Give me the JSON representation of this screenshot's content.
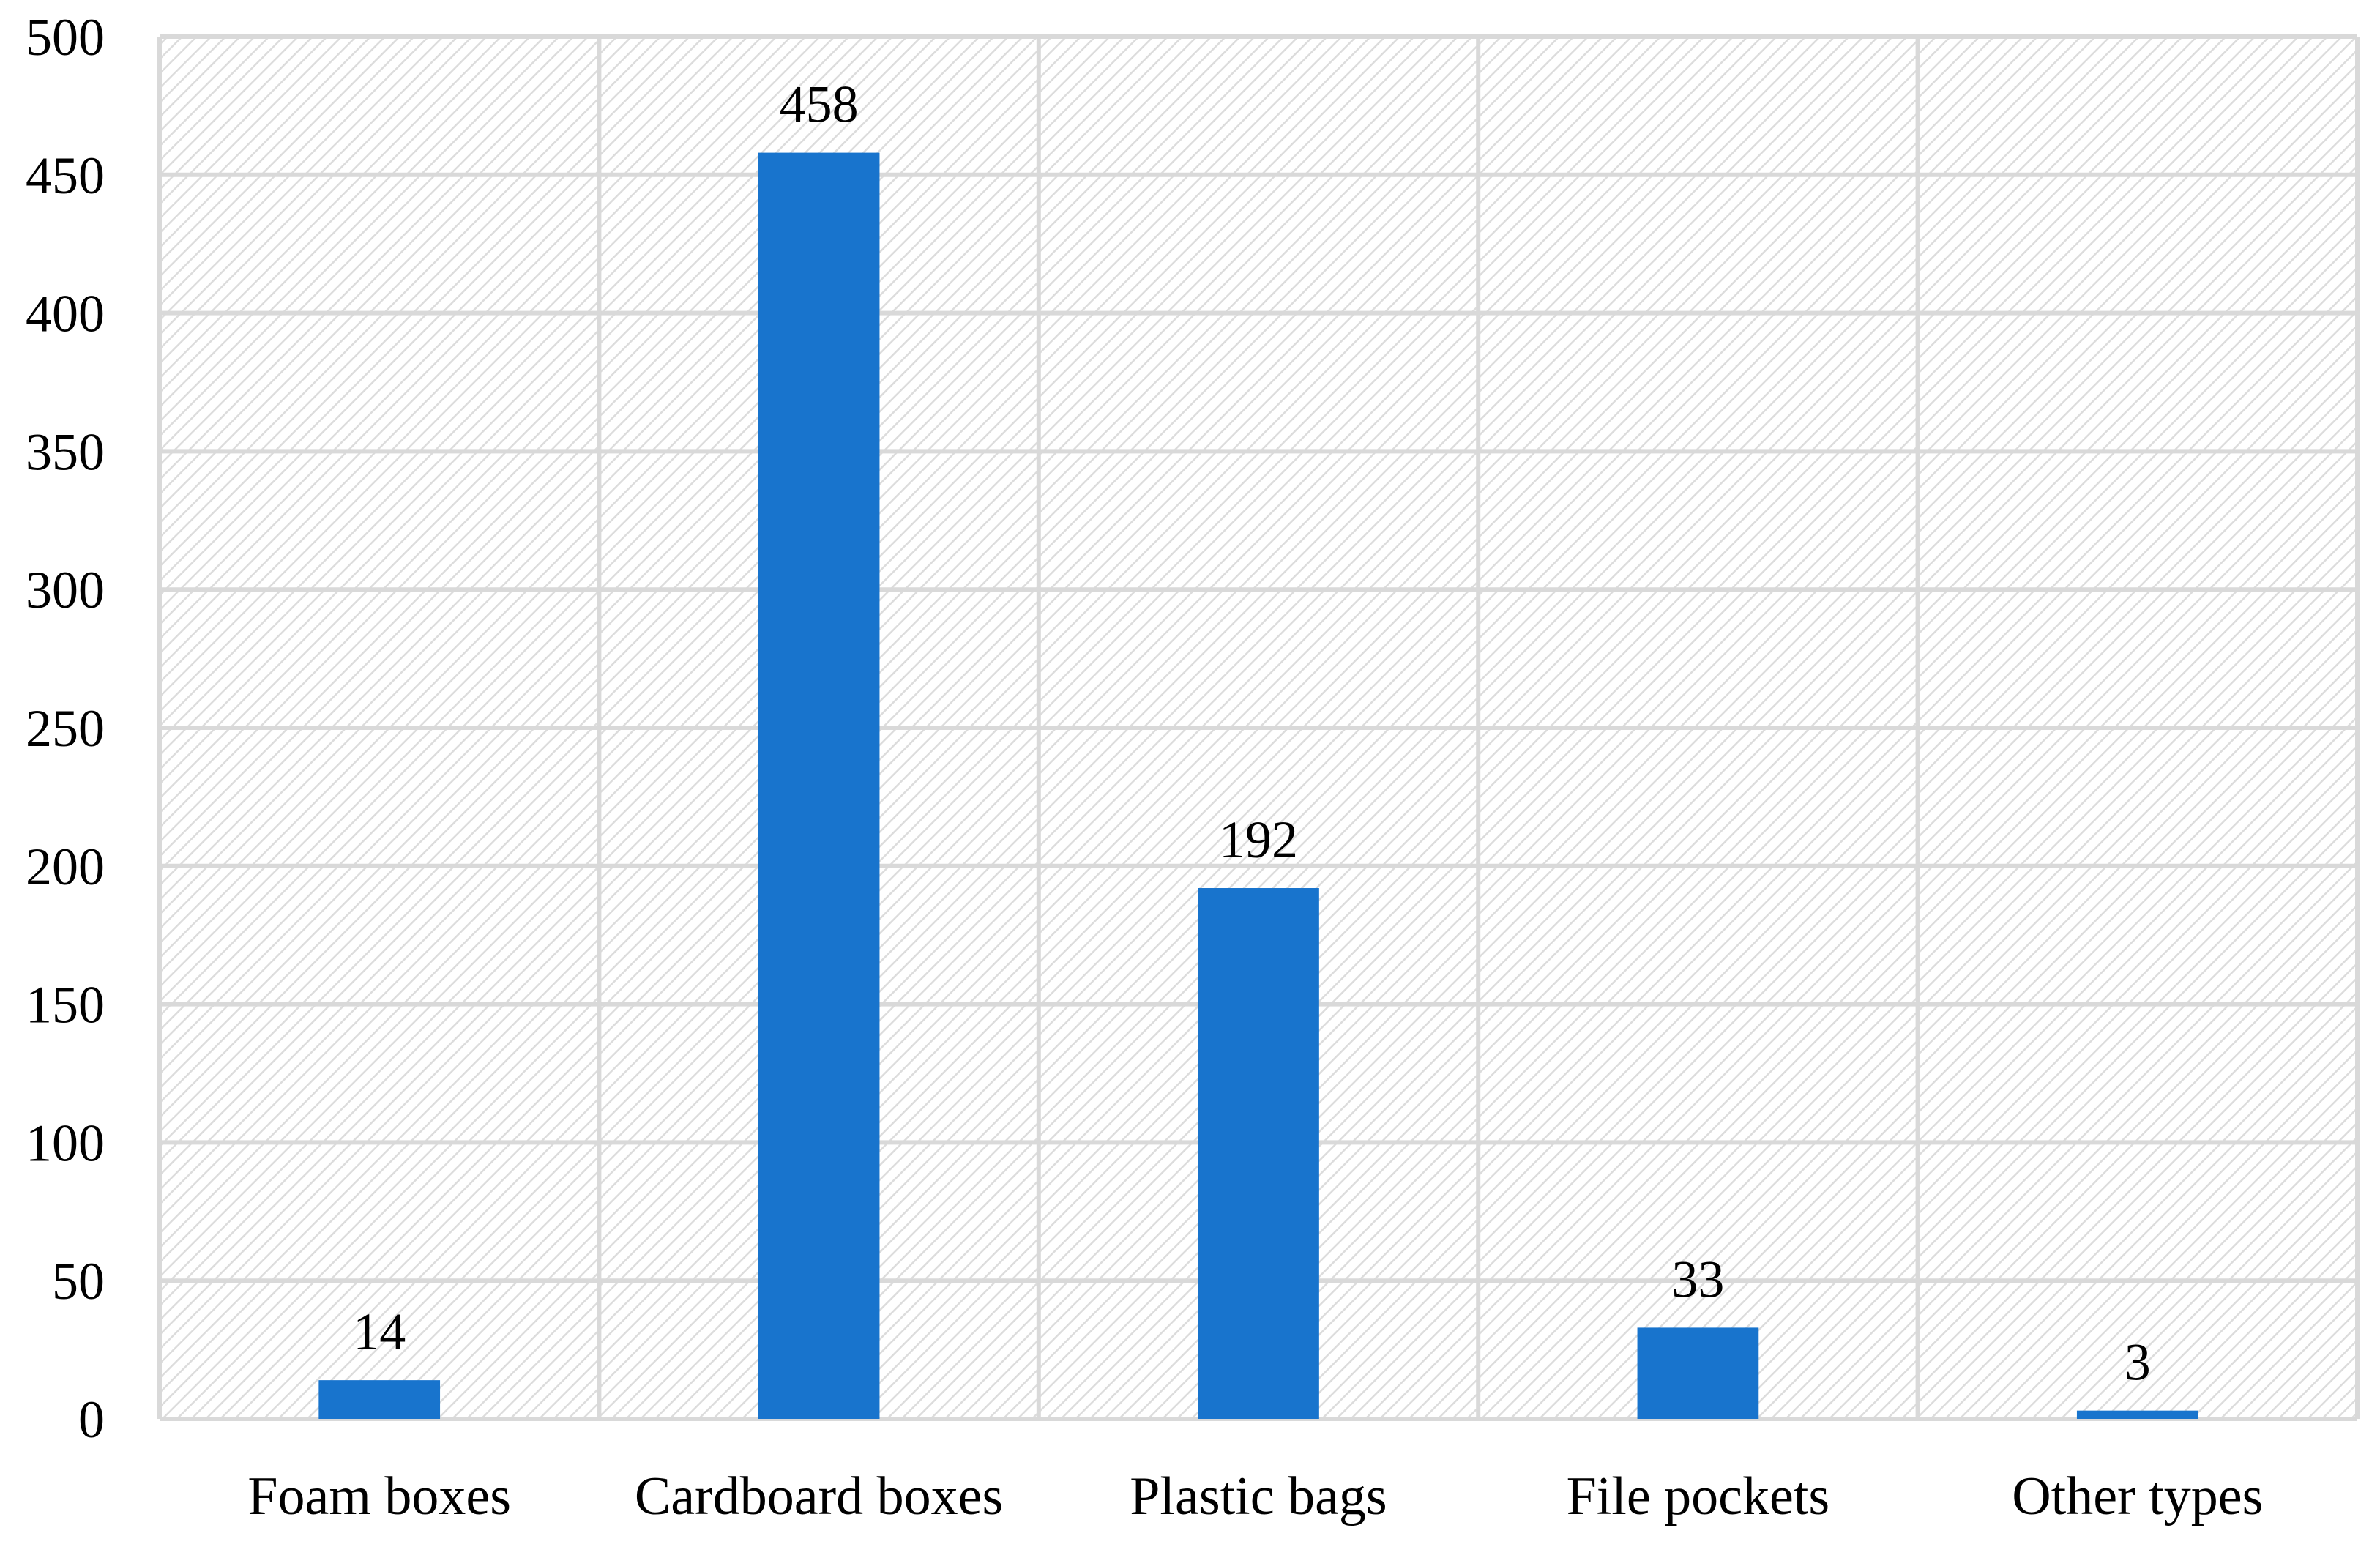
{
  "chart_data": {
    "type": "bar",
    "title": "",
    "xlabel": "",
    "ylabel": "",
    "categories": [
      "Foam boxes",
      "Cardboard boxes",
      "Plastic bags",
      "File pockets",
      "Other types"
    ],
    "values": [
      14,
      458,
      192,
      33,
      3
    ],
    "data_labels": [
      "14",
      "458",
      "192",
      "33",
      "3"
    ],
    "ylim": [
      0,
      500
    ],
    "yticks": [
      0,
      50,
      100,
      150,
      200,
      250,
      300,
      350,
      400,
      450,
      500
    ],
    "ytick_labels": [
      "0",
      "50",
      "100",
      "150",
      "200",
      "250",
      "300",
      "350",
      "400",
      "450",
      "500"
    ],
    "grid": true,
    "legend": "none",
    "colors": {
      "bar": "#1874CD",
      "grid": "#D9D9D9",
      "hatch": "#DCDCDC",
      "background": "#FFFFFF"
    }
  }
}
